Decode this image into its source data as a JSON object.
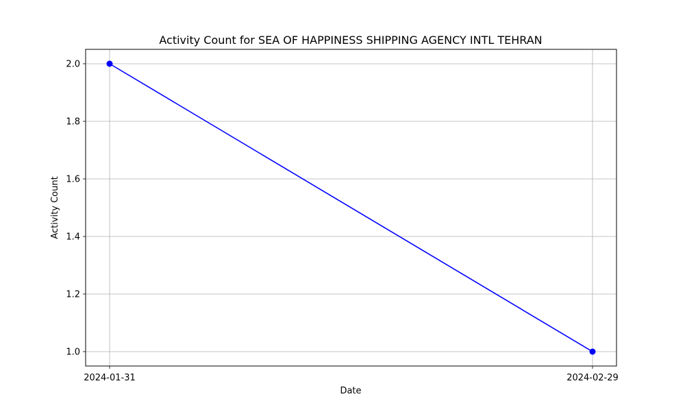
{
  "chart_data": {
    "type": "line",
    "title": "Activity Count for SEA OF HAPPINESS SHIPPING AGENCY INTL TEHRAN",
    "xlabel": "Date",
    "ylabel": "Activity Count",
    "x": [
      "2024-01-31",
      "2024-02-29"
    ],
    "x_tick_labels": [
      "2024-01-31",
      "2024-02-29"
    ],
    "series": [
      {
        "values": [
          2,
          1
        ],
        "color": "#0000ff",
        "marker": "circle"
      }
    ],
    "ylim": [
      0.95,
      2.05
    ],
    "y_ticks": [
      1.0,
      1.2,
      1.4,
      1.6,
      1.8,
      2.0
    ],
    "y_tick_labels": [
      "1.0",
      "1.2",
      "1.4",
      "1.6",
      "1.8",
      "2.0"
    ],
    "grid": true,
    "grid_color": "#b0b0b0"
  }
}
